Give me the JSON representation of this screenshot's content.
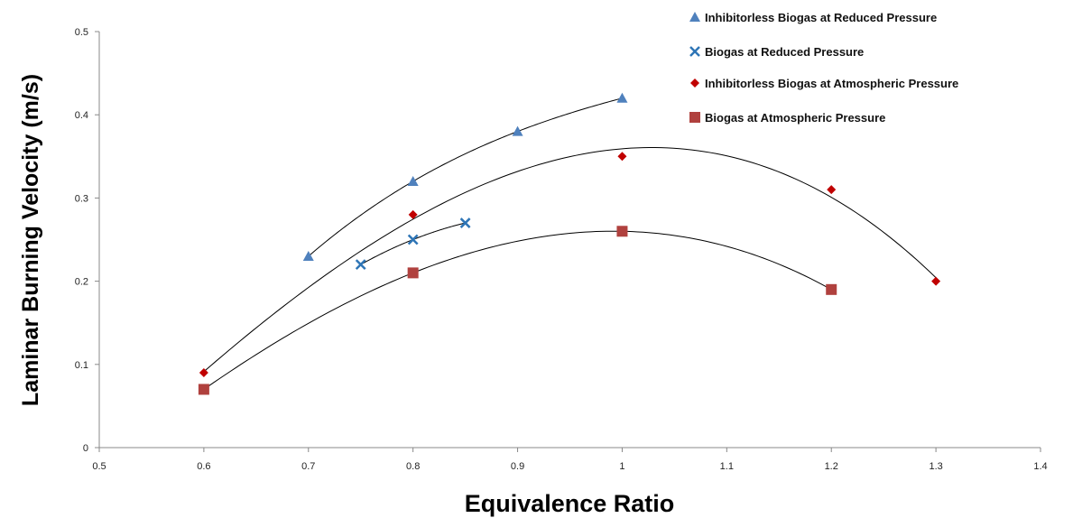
{
  "chart_data": {
    "type": "scatter",
    "xlabel": "Equivalence Ratio",
    "ylabel": "Laminar Burning Velocity (m/s)",
    "xlim": [
      0.5,
      1.4
    ],
    "ylim": [
      0,
      0.5
    ],
    "xticks": [
      "0.5",
      "0.6",
      "0.7",
      "0.8",
      "0.9",
      "1",
      "1.1",
      "1.2",
      "1.3",
      "1.4"
    ],
    "yticks": [
      "0",
      "0.1",
      "0.2",
      "0.3",
      "0.4",
      "0.5"
    ],
    "grid": false,
    "legend_position": "top-right",
    "trendlines": true,
    "series": [
      {
        "name": "Inhibitorless Biogas at Reduced Pressure",
        "marker": "triangle",
        "color": "#4F81BD",
        "x": [
          0.7,
          0.8,
          0.9,
          1.0
        ],
        "y": [
          0.23,
          0.32,
          0.38,
          0.42
        ]
      },
      {
        "name": "Biogas at Reduced Pressure",
        "marker": "x",
        "color": "#2E75B6",
        "x": [
          0.75,
          0.8,
          0.85
        ],
        "y": [
          0.22,
          0.25,
          0.27
        ]
      },
      {
        "name": "Inhibitorless Biogas at Atmospheric Pressure",
        "marker": "diamond",
        "color": "#C00000",
        "x": [
          0.6,
          0.8,
          1.0,
          1.2,
          1.3
        ],
        "y": [
          0.09,
          0.28,
          0.35,
          0.31,
          0.2
        ]
      },
      {
        "name": "Biogas at Atmospheric Pressure",
        "marker": "square",
        "color": "#B0413E",
        "x": [
          0.6,
          0.8,
          1.0,
          1.2
        ],
        "y": [
          0.07,
          0.21,
          0.26,
          0.19
        ]
      }
    ]
  }
}
